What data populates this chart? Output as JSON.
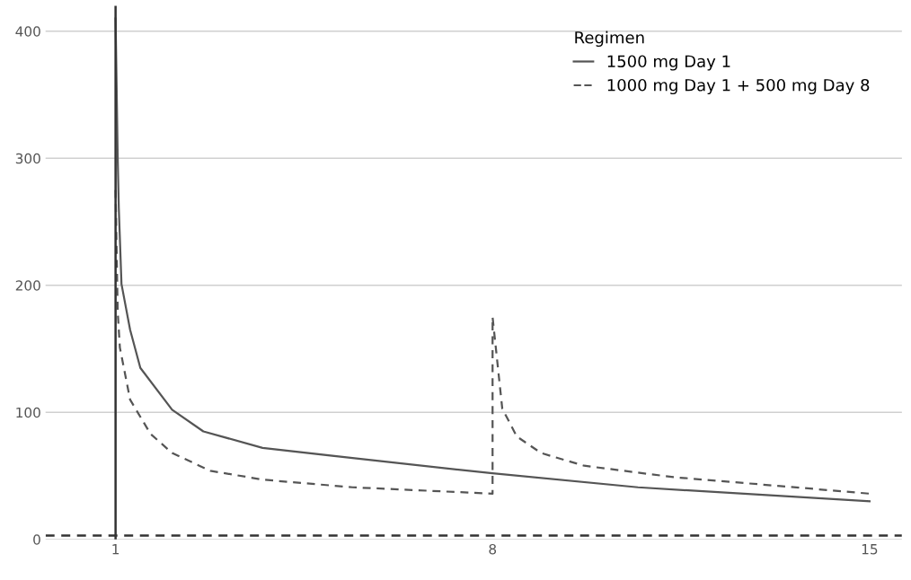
{
  "chart_data": {
    "type": "line",
    "legend_title": "Regimen",
    "legend": "top right",
    "grid": "y",
    "xlim": [
      -0.3,
      15.6
    ],
    "xticks": [
      1,
      8,
      15
    ],
    "ylim": [
      0,
      420
    ],
    "yticks": [
      0,
      100,
      200,
      300,
      400
    ],
    "series": [
      {
        "name": "1500 mg Day 1",
        "color": "#555555",
        "line_style": "solid",
        "x": [
          1,
          1.04,
          1.06,
          1.11,
          1.27,
          1.46,
          2.05,
          2.63,
          3.73,
          5.4,
          8.0,
          10.7,
          15.0
        ],
        "values": [
          410,
          300,
          261,
          201,
          165,
          135,
          102,
          85,
          72,
          64,
          52,
          41,
          30
        ]
      },
      {
        "name": "1000 mg Day 1 + 500 mg Day 8",
        "color": "#555555",
        "line_style": "dashed",
        "x": [
          1,
          1.04,
          1.08,
          1.27,
          1.65,
          2.05,
          2.76,
          3.74,
          5.4,
          8.0,
          8.0,
          8.18,
          8.45,
          8.9,
          9.7,
          11.36,
          13.34,
          15.0
        ],
        "values": [
          275,
          179,
          151,
          110,
          83,
          68,
          54,
          47,
          41,
          36,
          175,
          103,
          81,
          68,
          58,
          49,
          42,
          36
        ]
      }
    ],
    "ref_lines": [
      {
        "axis": "y",
        "value": 3,
        "color": "#333333",
        "line_style": "dashed"
      },
      {
        "axis": "x",
        "value": 1,
        "color": "#333333",
        "line_style": "solid"
      }
    ]
  }
}
